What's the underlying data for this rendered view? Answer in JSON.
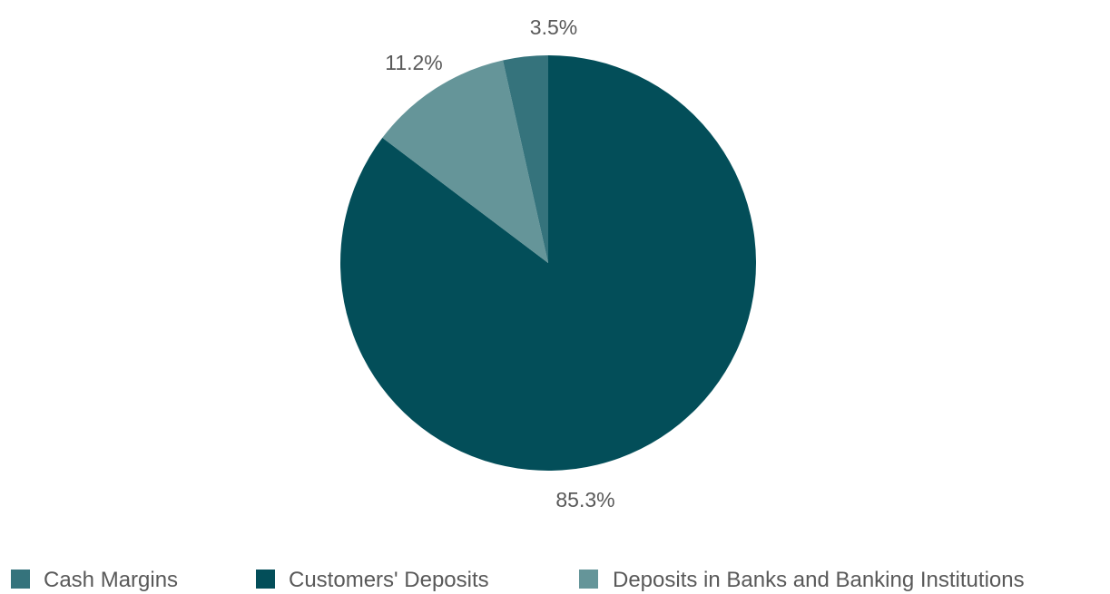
{
  "chart_data": {
    "type": "pie",
    "title": "",
    "start": "top",
    "direction": "clockwise",
    "legend_position": "bottom",
    "slices": [
      {
        "name": "Customers' Deposits",
        "value": 85.3,
        "label": "85.3%",
        "color": "#034e59"
      },
      {
        "name": "Deposits in Banks and Banking Institutions",
        "value": 11.2,
        "label": "11.2%",
        "color": "#659599"
      },
      {
        "name": "Cash Margins",
        "value": 3.5,
        "label": "3.5%",
        "color": "#35737c"
      }
    ],
    "legend": [
      {
        "name": "Cash Margins",
        "color": "#35737c"
      },
      {
        "name": "Customers' Deposits",
        "color": "#034e59"
      },
      {
        "name": "Deposits in Banks and Banking Institutions",
        "color": "#659599"
      }
    ]
  }
}
